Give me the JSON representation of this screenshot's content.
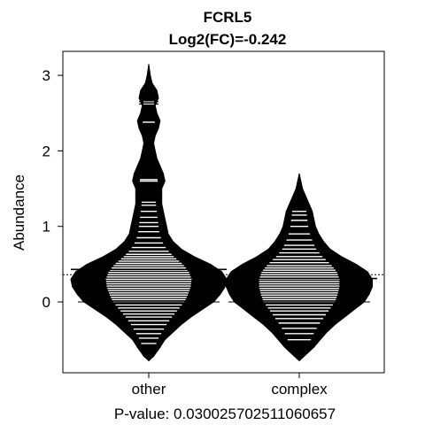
{
  "chart_data": {
    "type": "beanplot",
    "title": "FCRL5",
    "subtitle": "Log2(FC)=-0.242",
    "xlabel": "P-value: 0.030025702511060657",
    "ylabel": "Abundance",
    "ylim": [
      -0.95,
      3.3
    ],
    "yticks": [
      0,
      1,
      2,
      3
    ],
    "overall_mean": 0.36,
    "groups": [
      {
        "name": "other",
        "mean": 0.43,
        "density": [
          [
            -0.78,
            0.0
          ],
          [
            -0.72,
            0.03
          ],
          [
            -0.6,
            0.07
          ],
          [
            -0.5,
            0.1
          ],
          [
            -0.4,
            0.15
          ],
          [
            -0.3,
            0.2
          ],
          [
            -0.2,
            0.26
          ],
          [
            -0.1,
            0.33
          ],
          [
            0.0,
            0.4
          ],
          [
            0.1,
            0.44
          ],
          [
            0.2,
            0.47
          ],
          [
            0.3,
            0.48
          ],
          [
            0.4,
            0.45
          ],
          [
            0.5,
            0.38
          ],
          [
            0.6,
            0.28
          ],
          [
            0.7,
            0.2
          ],
          [
            0.8,
            0.15
          ],
          [
            0.9,
            0.12
          ],
          [
            1.0,
            0.11
          ],
          [
            1.1,
            0.1
          ],
          [
            1.2,
            0.09
          ],
          [
            1.3,
            0.08
          ],
          [
            1.4,
            0.08
          ],
          [
            1.5,
            0.08
          ],
          [
            1.6,
            0.1
          ],
          [
            1.7,
            0.09
          ],
          [
            1.8,
            0.07
          ],
          [
            1.9,
            0.05
          ],
          [
            2.0,
            0.04
          ],
          [
            2.1,
            0.03
          ],
          [
            2.2,
            0.04
          ],
          [
            2.3,
            0.06
          ],
          [
            2.4,
            0.07
          ],
          [
            2.5,
            0.05
          ],
          [
            2.6,
            0.04
          ],
          [
            2.7,
            0.06
          ],
          [
            2.8,
            0.05
          ],
          [
            2.9,
            0.02
          ],
          [
            3.0,
            0.01
          ],
          [
            3.15,
            0.0
          ]
        ],
        "observations": [
          -0.55,
          -0.48,
          -0.42,
          -0.36,
          -0.3,
          -0.25,
          -0.2,
          -0.16,
          -0.12,
          -0.08,
          -0.04,
          0.0,
          0.03,
          0.06,
          0.09,
          0.12,
          0.15,
          0.18,
          0.21,
          0.24,
          0.27,
          0.3,
          0.33,
          0.36,
          0.39,
          0.42,
          0.45,
          0.48,
          0.51,
          0.54,
          0.57,
          0.6,
          0.63,
          0.67,
          0.72,
          0.78,
          0.85,
          0.93,
          1.0,
          1.05,
          1.12,
          1.2,
          1.28,
          1.32,
          1.6,
          1.62,
          2.38,
          2.62,
          2.65
        ]
      },
      {
        "name": "complex",
        "mean": 0.31,
        "density": [
          [
            -0.78,
            0.0
          ],
          [
            -0.7,
            0.04
          ],
          [
            -0.6,
            0.09
          ],
          [
            -0.5,
            0.13
          ],
          [
            -0.4,
            0.17
          ],
          [
            -0.3,
            0.22
          ],
          [
            -0.2,
            0.28
          ],
          [
            -0.1,
            0.34
          ],
          [
            0.0,
            0.4
          ],
          [
            0.1,
            0.43
          ],
          [
            0.2,
            0.45
          ],
          [
            0.3,
            0.45
          ],
          [
            0.4,
            0.42
          ],
          [
            0.5,
            0.35
          ],
          [
            0.6,
            0.26
          ],
          [
            0.7,
            0.19
          ],
          [
            0.8,
            0.15
          ],
          [
            0.9,
            0.12
          ],
          [
            1.0,
            0.1
          ],
          [
            1.1,
            0.09
          ],
          [
            1.2,
            0.08
          ],
          [
            1.3,
            0.06
          ],
          [
            1.4,
            0.04
          ],
          [
            1.5,
            0.02
          ],
          [
            1.6,
            0.01
          ],
          [
            1.7,
            0.0
          ]
        ],
        "observations": [
          -0.5,
          -0.42,
          -0.35,
          -0.28,
          -0.22,
          -0.17,
          -0.12,
          -0.08,
          -0.04,
          0.0,
          0.03,
          0.06,
          0.09,
          0.12,
          0.15,
          0.18,
          0.21,
          0.24,
          0.27,
          0.3,
          0.33,
          0.36,
          0.39,
          0.42,
          0.45,
          0.48,
          0.52,
          0.56,
          0.6,
          0.65,
          0.7,
          0.75,
          0.82,
          0.9,
          1.0,
          1.08,
          1.15,
          1.2
        ]
      }
    ]
  }
}
